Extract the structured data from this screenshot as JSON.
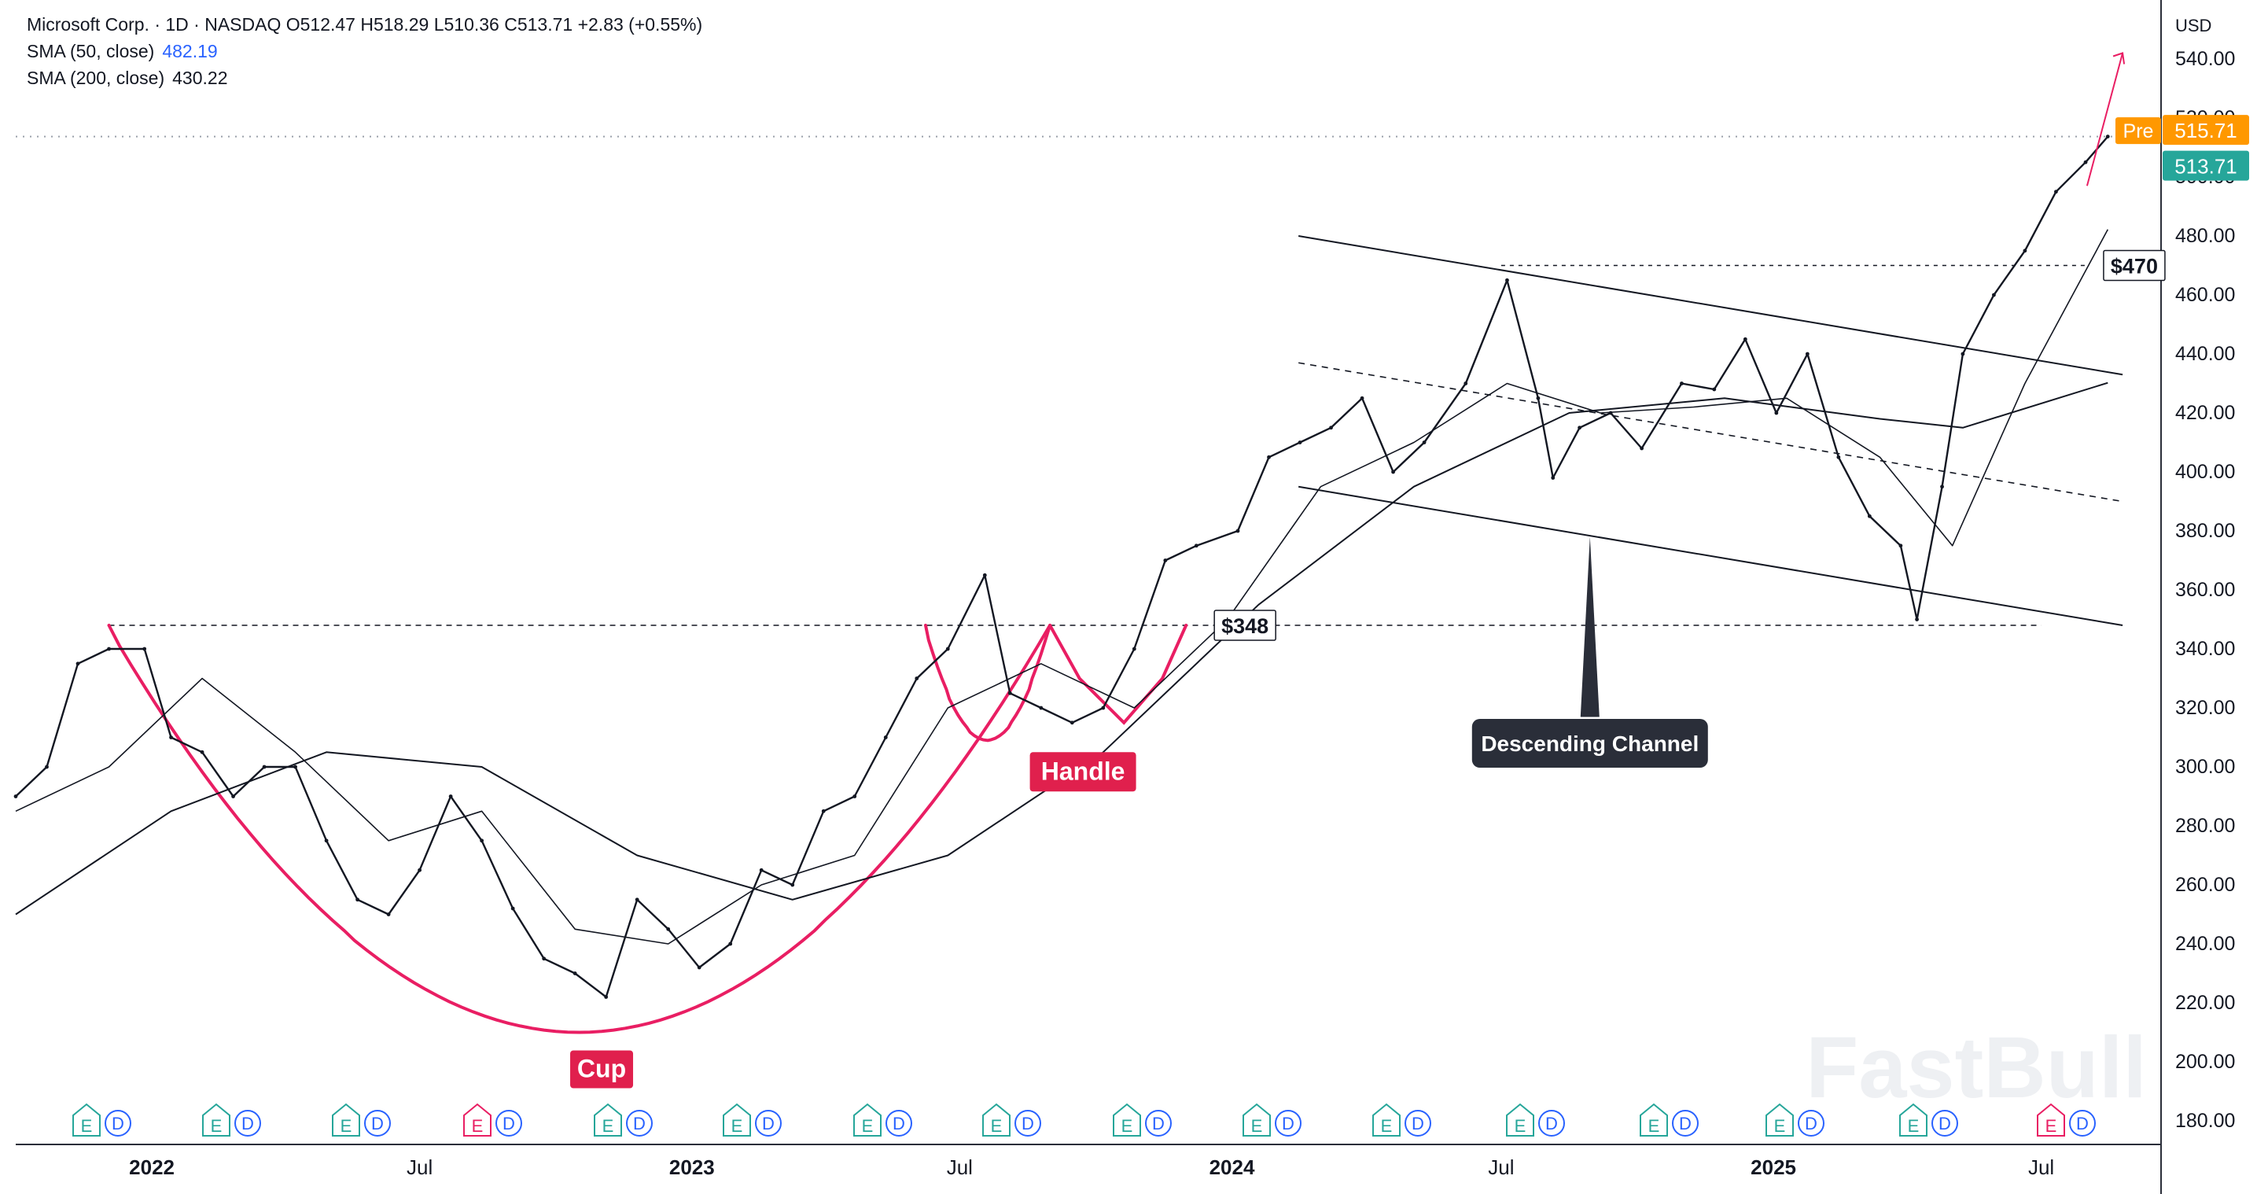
{
  "legend": {
    "symbol_line": "Microsoft Corp. · 1D · NASDAQ  O512.47  H518.29  L510.36  C513.71  +2.83 (+0.55%)",
    "sma50_label": "SMA (50, close)",
    "sma50_value": "482.19",
    "sma200_label": "SMA (200, close)",
    "sma200_value": "430.22"
  },
  "currency": "USD",
  "price_tags": {
    "pre_label": "Pre",
    "pre_value": "515.71",
    "last_value": "513.71"
  },
  "annotations": {
    "cup": "Cup",
    "handle": "Handle",
    "channel": "Descending Channel",
    "level_low": "$348",
    "level_high": "$470"
  },
  "watermark": "FastBull",
  "colors": {
    "price": "#131722",
    "pattern": "#e91e63",
    "cup_label_bg": "#e0204d",
    "pre_tag": "#ff9800",
    "last_tag": "#26a69a",
    "earnings_badge": "#26a69a",
    "earnings_badge_future": "#e91e63",
    "dividend_badge": "#2962ff"
  },
  "chart_data": {
    "type": "line",
    "title": "Microsoft Corp. · 1D · NASDAQ",
    "x_tick_labels": [
      "2022",
      "Jul",
      "2023",
      "Jul",
      "2024",
      "Jul",
      "2025",
      "Jul"
    ],
    "y_tick_labels": [
      "180.00",
      "200.00",
      "220.00",
      "240.00",
      "260.00",
      "280.00",
      "300.00",
      "320.00",
      "340.00",
      "360.00",
      "380.00",
      "400.00",
      "420.00",
      "440.00",
      "460.00",
      "480.00",
      "500.00",
      "520.00",
      "540.00"
    ],
    "ylim": [
      172,
      552
    ],
    "xlim": [
      "2021-10-01",
      "2025-09-20"
    ],
    "grid": false,
    "series": [
      {
        "name": "Microsoft Corp.",
        "type": "line",
        "x": [
          "2021-10-01",
          "2021-10-22",
          "2021-11-12",
          "2021-12-03",
          "2021-12-27",
          "2022-01-14",
          "2022-02-04",
          "2022-02-25",
          "2022-03-18",
          "2022-04-08",
          "2022-04-29",
          "2022-05-20",
          "2022-06-10",
          "2022-07-01",
          "2022-07-22",
          "2022-08-12",
          "2022-09-02",
          "2022-09-23",
          "2022-10-14",
          "2022-11-04",
          "2022-11-25",
          "2022-12-16",
          "2023-01-06",
          "2023-01-27",
          "2023-02-17",
          "2023-03-10",
          "2023-03-31",
          "2023-04-21",
          "2023-05-12",
          "2023-06-02",
          "2023-06-23",
          "2023-07-18",
          "2023-08-04",
          "2023-08-25",
          "2023-09-15",
          "2023-10-06",
          "2023-10-27",
          "2023-11-17",
          "2023-12-08",
          "2024-01-05",
          "2024-01-26",
          "2024-02-16",
          "2024-03-08",
          "2024-03-29",
          "2024-04-19",
          "2024-05-10",
          "2024-06-07",
          "2024-07-05",
          "2024-07-26",
          "2024-08-05",
          "2024-08-23",
          "2024-09-13",
          "2024-10-04",
          "2024-10-31",
          "2024-11-22",
          "2024-12-13",
          "2025-01-03",
          "2025-01-24",
          "2025-02-14",
          "2025-03-07",
          "2025-03-28",
          "2025-04-08",
          "2025-04-25",
          "2025-05-09",
          "2025-05-30",
          "2025-06-20",
          "2025-07-11",
          "2025-07-31",
          "2025-08-15"
        ],
        "y": [
          290,
          300,
          335,
          340,
          340,
          310,
          305,
          290,
          300,
          300,
          275,
          255,
          250,
          265,
          290,
          275,
          252,
          235,
          230,
          222,
          255,
          245,
          232,
          240,
          265,
          260,
          285,
          290,
          310,
          330,
          340,
          365,
          325,
          320,
          315,
          320,
          340,
          370,
          375,
          380,
          405,
          410,
          415,
          425,
          400,
          410,
          430,
          465,
          425,
          398,
          415,
          420,
          408,
          430,
          428,
          445,
          420,
          440,
          405,
          385,
          375,
          350,
          395,
          440,
          460,
          475,
          495,
          505,
          513.71
        ]
      },
      {
        "name": "SMA (50, close)",
        "type": "line",
        "x": [
          "2021-10-01",
          "2021-12-03",
          "2022-02-04",
          "2022-04-08",
          "2022-06-10",
          "2022-08-12",
          "2022-10-14",
          "2022-12-16",
          "2023-02-17",
          "2023-04-21",
          "2023-06-23",
          "2023-08-25",
          "2023-10-27",
          "2023-12-29",
          "2024-03-01",
          "2024-05-03",
          "2024-07-05",
          "2024-09-06",
          "2024-11-08",
          "2025-01-10",
          "2025-03-14",
          "2025-05-02",
          "2025-06-20",
          "2025-08-15"
        ],
        "y": [
          285,
          300,
          330,
          305,
          275,
          285,
          245,
          240,
          260,
          270,
          320,
          335,
          320,
          350,
          395,
          410,
          430,
          420,
          422,
          425,
          405,
          375,
          430,
          482.19
        ]
      },
      {
        "name": "SMA (200, close)",
        "type": "line",
        "x": [
          "2021-10-01",
          "2022-01-14",
          "2022-04-29",
          "2022-08-12",
          "2022-11-25",
          "2023-03-10",
          "2023-06-23",
          "2023-10-06",
          "2024-01-19",
          "2024-05-03",
          "2024-08-16",
          "2024-11-29",
          "2025-03-14",
          "2025-05-09",
          "2025-08-15"
        ],
        "y": [
          250,
          285,
          305,
          300,
          270,
          255,
          270,
          305,
          355,
          395,
          420,
          425,
          418,
          415,
          430.22
        ]
      }
    ],
    "levels": [
      {
        "label": "$348",
        "y": 348
      },
      {
        "label": "$470",
        "y": 470
      }
    ]
  }
}
